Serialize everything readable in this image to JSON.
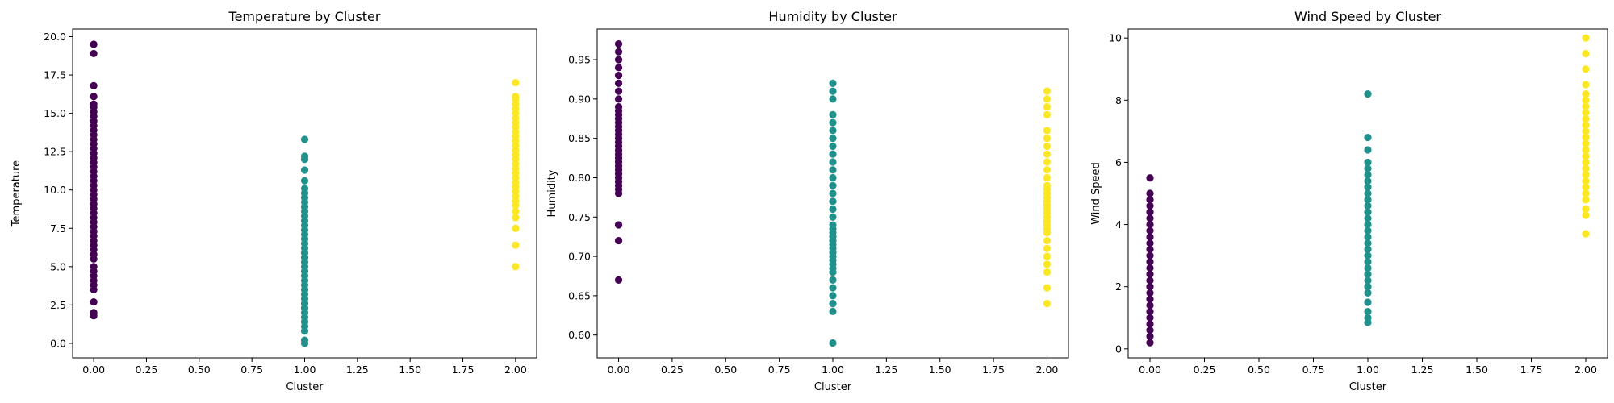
{
  "figure": {
    "background": "#ffffff"
  },
  "palette": {
    "0": "#440154",
    "1": "#21918c",
    "2": "#fde725"
  },
  "chart_data": [
    {
      "type": "scatter",
      "title": "Temperature by Cluster",
      "xlabel": "Cluster",
      "ylabel": "Temperature",
      "xlim": [
        -0.1,
        2.1
      ],
      "ylim": [
        -0.95,
        20.5
      ],
      "xticks": [
        0.0,
        0.25,
        0.5,
        0.75,
        1.0,
        1.25,
        1.5,
        1.75,
        2.0
      ],
      "xtick_labels": [
        "0.00",
        "0.25",
        "0.50",
        "0.75",
        "1.00",
        "1.25",
        "1.50",
        "1.75",
        "2.00"
      ],
      "yticks": [
        0.0,
        2.5,
        5.0,
        7.5,
        10.0,
        12.5,
        15.0,
        17.5,
        20.0
      ],
      "ytick_labels": [
        "0.0",
        "2.5",
        "5.0",
        "7.5",
        "10.0",
        "12.5",
        "15.0",
        "17.5",
        "20.0"
      ],
      "grid": false,
      "series": [
        {
          "cluster": 0,
          "x": 0,
          "values": [
            1.8,
            2.0,
            2.7,
            3.5,
            3.8,
            4.1,
            4.4,
            4.7,
            5.0,
            5.5,
            5.8,
            6.1,
            6.4,
            6.7,
            7.0,
            7.3,
            7.6,
            7.9,
            8.2,
            8.5,
            8.8,
            9.1,
            9.4,
            9.7,
            10.0,
            10.3,
            10.6,
            10.9,
            11.2,
            11.5,
            11.8,
            12.1,
            12.4,
            12.7,
            13.0,
            13.3,
            13.6,
            13.9,
            14.2,
            14.5,
            14.8,
            15.1,
            15.4,
            15.6,
            16.1,
            16.8,
            18.9,
            19.5
          ]
        },
        {
          "cluster": 1,
          "x": 1,
          "values": [
            0.0,
            0.2,
            0.8,
            1.1,
            1.4,
            1.7,
            2.0,
            2.3,
            2.6,
            2.9,
            3.2,
            3.5,
            3.8,
            4.1,
            4.4,
            4.7,
            5.0,
            5.3,
            5.6,
            5.9,
            6.2,
            6.5,
            6.8,
            7.1,
            7.4,
            7.7,
            8.0,
            8.3,
            8.6,
            8.9,
            9.2,
            9.5,
            9.8,
            10.1,
            10.6,
            11.3,
            12.0,
            12.2,
            13.3
          ]
        },
        {
          "cluster": 2,
          "x": 2,
          "values": [
            5.0,
            6.4,
            7.5,
            8.2,
            8.6,
            9.0,
            9.3,
            9.6,
            9.9,
            10.2,
            10.5,
            10.8,
            11.1,
            11.4,
            11.7,
            12.0,
            12.3,
            12.6,
            12.9,
            13.2,
            13.5,
            13.8,
            14.1,
            14.4,
            14.7,
            15.0,
            15.3,
            15.6,
            15.9,
            16.1,
            17.0
          ]
        }
      ]
    },
    {
      "type": "scatter",
      "title": "Humidity by Cluster",
      "xlabel": "Cluster",
      "ylabel": "Humidity",
      "xlim": [
        -0.1,
        2.1
      ],
      "ylim": [
        0.571,
        0.989
      ],
      "xticks": [
        0.0,
        0.25,
        0.5,
        0.75,
        1.0,
        1.25,
        1.5,
        1.75,
        2.0
      ],
      "xtick_labels": [
        "0.00",
        "0.25",
        "0.50",
        "0.75",
        "1.00",
        "1.25",
        "1.50",
        "1.75",
        "2.00"
      ],
      "yticks": [
        0.6,
        0.65,
        0.7,
        0.75,
        0.8,
        0.85,
        0.9,
        0.95
      ],
      "ytick_labels": [
        "0.60",
        "0.65",
        "0.70",
        "0.75",
        "0.80",
        "0.85",
        "0.90",
        "0.95"
      ],
      "grid": false,
      "series": [
        {
          "cluster": 0,
          "x": 0,
          "values": [
            0.67,
            0.72,
            0.74,
            0.74,
            0.78,
            0.785,
            0.79,
            0.795,
            0.8,
            0.805,
            0.81,
            0.815,
            0.82,
            0.825,
            0.83,
            0.835,
            0.84,
            0.845,
            0.85,
            0.855,
            0.86,
            0.865,
            0.87,
            0.875,
            0.88,
            0.885,
            0.89,
            0.9,
            0.91,
            0.92,
            0.93,
            0.94,
            0.95,
            0.96,
            0.97
          ]
        },
        {
          "cluster": 1,
          "x": 1,
          "values": [
            0.59,
            0.63,
            0.64,
            0.65,
            0.66,
            0.67,
            0.68,
            0.685,
            0.69,
            0.695,
            0.7,
            0.705,
            0.71,
            0.715,
            0.72,
            0.725,
            0.73,
            0.735,
            0.74,
            0.75,
            0.76,
            0.77,
            0.78,
            0.79,
            0.8,
            0.81,
            0.82,
            0.83,
            0.84,
            0.85,
            0.86,
            0.87,
            0.88,
            0.9,
            0.91,
            0.92
          ]
        },
        {
          "cluster": 2,
          "x": 2,
          "values": [
            0.64,
            0.66,
            0.68,
            0.69,
            0.7,
            0.71,
            0.72,
            0.73,
            0.735,
            0.74,
            0.745,
            0.75,
            0.755,
            0.76,
            0.765,
            0.77,
            0.775,
            0.78,
            0.785,
            0.79,
            0.8,
            0.81,
            0.82,
            0.83,
            0.84,
            0.85,
            0.86,
            0.88,
            0.89,
            0.9,
            0.91
          ]
        }
      ]
    },
    {
      "type": "scatter",
      "title": "Wind Speed by Cluster",
      "xlabel": "Cluster",
      "ylabel": "Wind Speed",
      "xlim": [
        -0.1,
        2.1
      ],
      "ylim": [
        -0.29,
        10.29
      ],
      "xticks": [
        0.0,
        0.25,
        0.5,
        0.75,
        1.0,
        1.25,
        1.5,
        1.75,
        2.0
      ],
      "xtick_labels": [
        "0.00",
        "0.25",
        "0.50",
        "0.75",
        "1.00",
        "1.25",
        "1.50",
        "1.75",
        "2.00"
      ],
      "yticks": [
        0,
        2,
        4,
        6,
        8,
        10
      ],
      "ytick_labels": [
        "0",
        "2",
        "4",
        "6",
        "8",
        "10"
      ],
      "grid": false,
      "series": [
        {
          "cluster": 0,
          "x": 0,
          "values": [
            0.2,
            0.4,
            0.6,
            0.8,
            1.0,
            1.2,
            1.4,
            1.6,
            1.8,
            2.0,
            2.2,
            2.4,
            2.6,
            2.8,
            3.0,
            3.2,
            3.4,
            3.6,
            3.8,
            4.0,
            4.2,
            4.4,
            4.6,
            4.8,
            5.0,
            5.5
          ]
        },
        {
          "cluster": 1,
          "x": 1,
          "values": [
            0.85,
            1.0,
            1.2,
            1.5,
            1.8,
            2.0,
            2.2,
            2.4,
            2.6,
            2.8,
            3.0,
            3.2,
            3.4,
            3.6,
            3.8,
            4.0,
            4.2,
            4.4,
            4.6,
            4.8,
            5.0,
            5.2,
            5.4,
            5.6,
            5.8,
            6.0,
            6.4,
            6.8,
            8.2
          ]
        },
        {
          "cluster": 2,
          "x": 2,
          "values": [
            3.7,
            4.3,
            4.5,
            4.8,
            5.0,
            5.2,
            5.4,
            5.6,
            5.8,
            6.0,
            6.2,
            6.4,
            6.6,
            6.8,
            7.0,
            7.2,
            7.4,
            7.6,
            7.8,
            8.0,
            8.2,
            8.5,
            9.0,
            9.5,
            10.0
          ]
        }
      ]
    }
  ]
}
